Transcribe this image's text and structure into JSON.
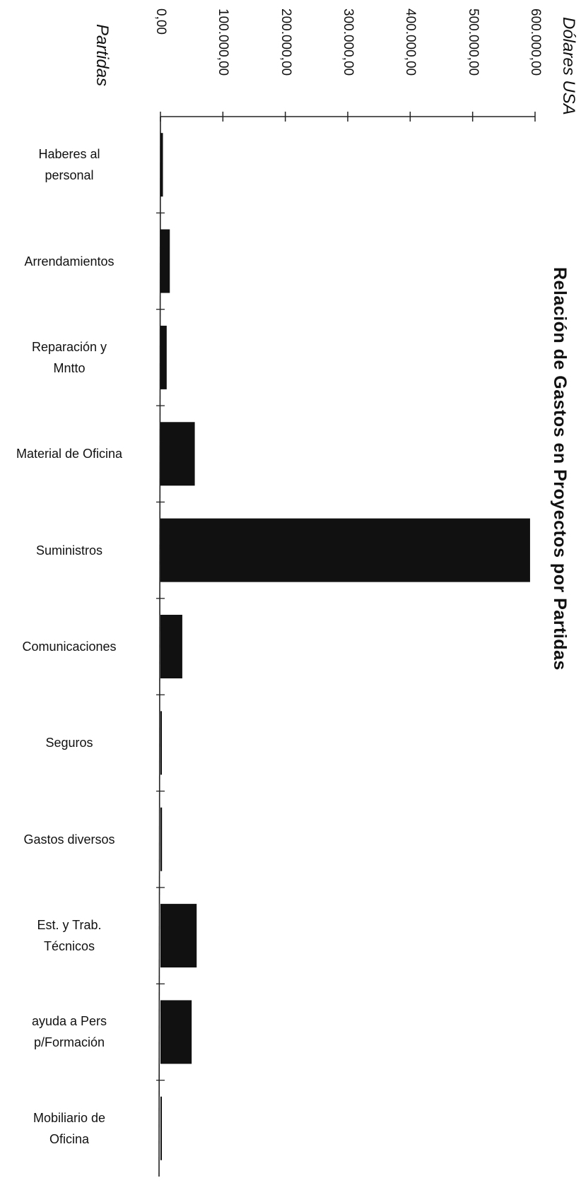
{
  "chart_data": {
    "type": "bar",
    "orientation": "horizontal",
    "title": "Relación de Gastos en Proyectos por Partidas",
    "xlabel": "Dólares USA",
    "ylabel": "Partidas",
    "xlim": [
      0,
      600000
    ],
    "xticks": [
      "0,00",
      "100.000,00",
      "200.000,00",
      "300.000,00",
      "400.000,00",
      "500.000,00",
      "600.000,00"
    ],
    "categories": [
      [
        "Haberes al",
        "personal"
      ],
      [
        "Arrendamientos"
      ],
      [
        "Reparación y",
        "Mntto"
      ],
      [
        "Material de Oficina"
      ],
      [
        "Suministros"
      ],
      [
        "Comunicaciones"
      ],
      [
        "Seguros"
      ],
      [
        "Gastos diversos"
      ],
      [
        "Est. y Trab.",
        "Técnicos"
      ],
      [
        "ayuda a Pers",
        "p/Formación"
      ],
      [
        "Mobiliario de",
        "Oficina"
      ]
    ],
    "values": [
      4000,
      15000,
      10000,
      55000,
      592000,
      35000,
      1500,
      2500,
      58000,
      50000,
      1000
    ],
    "colors": {
      "bar": "#111111",
      "axis": "#222222"
    }
  }
}
